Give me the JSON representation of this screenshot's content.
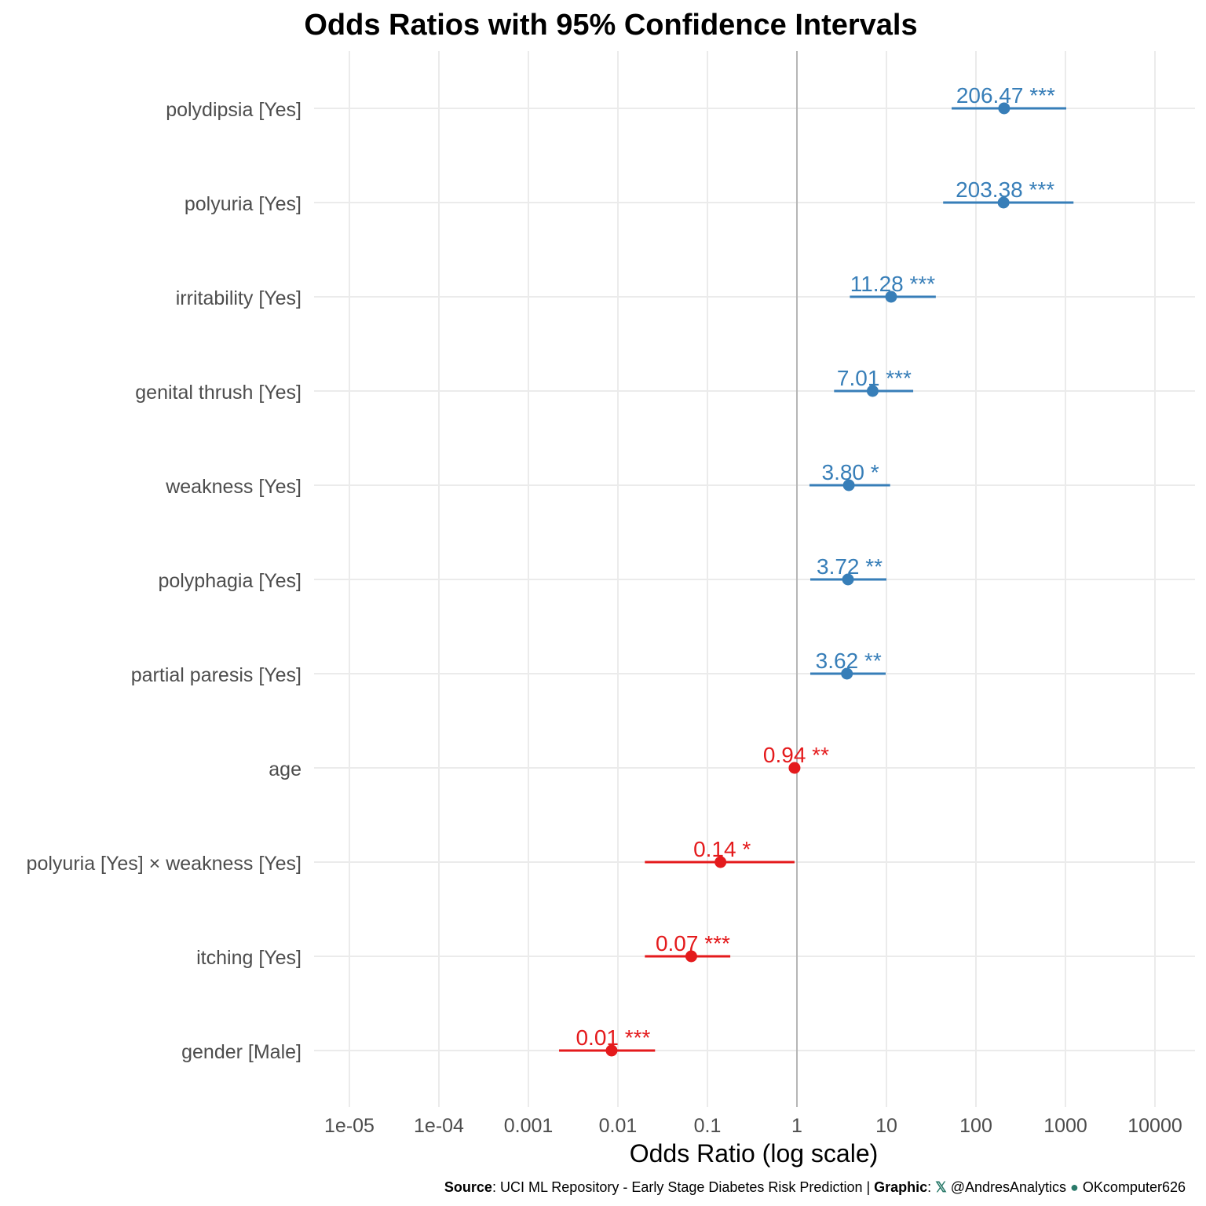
{
  "chart_data": {
    "type": "forest",
    "title": "Odds Ratios with 95% Confidence Intervals",
    "xlabel": "Odds Ratio (log scale)",
    "ylabel": "",
    "x_scale": "log10",
    "xlim": [
      5.2e-06,
      25000
    ],
    "x_ticks": [
      1e-05,
      0.0001,
      0.001,
      0.01,
      0.1,
      1,
      10,
      100,
      1000,
      10000
    ],
    "x_tick_labels": [
      "1e-05",
      "1e-04",
      "0.001",
      "0.01",
      "0.1",
      "1",
      "10",
      "100",
      "1000",
      "10000"
    ],
    "reference_line": 1,
    "grid": true,
    "colors": {
      "positive": "#377eb8",
      "negative": "#e41a1c",
      "reference": "#808080",
      "grid": "#ebebeb"
    },
    "rows": [
      {
        "term": "polydipsia [Yes]",
        "or": 206.47,
        "low": 53.5,
        "high": 1020,
        "label": "206.47 ***",
        "direction": "positive"
      },
      {
        "term": "polyuria [Yes]",
        "or": 203.38,
        "low": 43,
        "high": 1230,
        "label": "203.38 ***",
        "direction": "positive"
      },
      {
        "term": "irritability [Yes]",
        "or": 11.28,
        "low": 3.9,
        "high": 35.6,
        "label": "11.28 ***",
        "direction": "positive"
      },
      {
        "term": "genital thrush [Yes]",
        "or": 7.01,
        "low": 2.6,
        "high": 19.9,
        "label": "7.01 ***",
        "direction": "positive"
      },
      {
        "term": "weakness [Yes]",
        "or": 3.8,
        "low": 1.38,
        "high": 11.0,
        "label": "3.80 *",
        "direction": "positive"
      },
      {
        "term": "polyphagia [Yes]",
        "or": 3.72,
        "low": 1.41,
        "high": 10.0,
        "label": "3.72 **",
        "direction": "positive"
      },
      {
        "term": "partial paresis [Yes]",
        "or": 3.62,
        "low": 1.41,
        "high": 9.8,
        "label": "3.62 **",
        "direction": "positive"
      },
      {
        "term": "age",
        "or": 0.94,
        "low": 0.91,
        "high": 0.97,
        "label": "0.94 **",
        "direction": "negative"
      },
      {
        "term": "polyuria [Yes] × weakness [Yes]",
        "or": 0.14,
        "low": 0.02,
        "high": 0.94,
        "label": "0.14 *",
        "direction": "negative"
      },
      {
        "term": "itching [Yes]",
        "or": 0.066,
        "low": 0.02,
        "high": 0.18,
        "label": "0.07 ***",
        "direction": "negative"
      },
      {
        "term": "gender [Male]",
        "or": 0.0085,
        "low": 0.0022,
        "high": 0.026,
        "label": "0.01 ***",
        "direction": "negative"
      }
    ]
  },
  "caption": {
    "source_label": "Source",
    "source_text": ": UCI ML Repository - Early Stage Diabetes Risk Prediction | ",
    "graphic_label": "Graphic",
    "graphic_sep": ": ",
    "x_handle": "@AndresAnalytics",
    "github_handle": "OKcomputer626",
    "x_icon": "x-logo-icon",
    "github_icon": "github-icon",
    "icon_color": "#2a7a6a"
  }
}
